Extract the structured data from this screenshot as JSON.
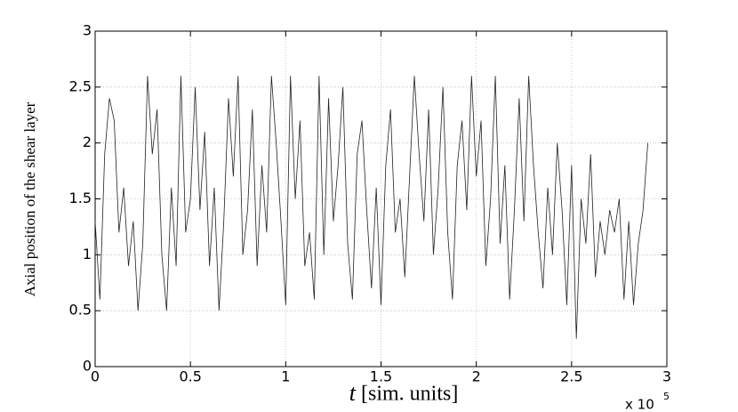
{
  "chart_data": {
    "type": "line",
    "y_label": "Axial position of the shear layer",
    "x_label_var": "t",
    "x_label_unit": "[sim. units]",
    "x_exponent_base": "x 10",
    "x_exponent": "5",
    "xlim": [
      0,
      3
    ],
    "xticks": [
      0,
      0.5,
      1,
      1.5,
      2,
      2.5,
      3
    ],
    "ylim": [
      0,
      3
    ],
    "yticks": [
      0,
      0.5,
      1,
      1.5,
      2,
      2.5,
      3
    ],
    "grid": true,
    "series": [
      {
        "color": "#222222",
        "x": [
          0,
          0.025,
          0.05,
          0.075,
          0.1,
          0.125,
          0.15,
          0.175,
          0.2,
          0.225,
          0.25,
          0.275,
          0.3,
          0.325,
          0.35,
          0.375,
          0.4,
          0.425,
          0.45,
          0.475,
          0.5,
          0.525,
          0.55,
          0.575,
          0.6,
          0.625,
          0.65,
          0.675,
          0.7,
          0.725,
          0.75,
          0.775,
          0.8,
          0.825,
          0.85,
          0.875,
          0.9,
          0.925,
          0.95,
          0.975,
          1,
          1.025,
          1.05,
          1.075,
          1.1,
          1.125,
          1.15,
          1.175,
          1.2,
          1.225,
          1.25,
          1.275,
          1.3,
          1.325,
          1.35,
          1.375,
          1.4,
          1.425,
          1.45,
          1.475,
          1.5,
          1.525,
          1.55,
          1.575,
          1.6,
          1.625,
          1.65,
          1.675,
          1.7,
          1.725,
          1.75,
          1.775,
          1.8,
          1.825,
          1.85,
          1.875,
          1.9,
          1.925,
          1.95,
          1.975,
          2,
          2.025,
          2.05,
          2.075,
          2.1,
          2.125,
          2.15,
          2.175,
          2.2,
          2.225,
          2.25,
          2.275,
          2.3,
          2.325,
          2.35,
          2.375,
          2.4,
          2.425,
          2.45,
          2.475,
          2.5,
          2.525,
          2.55,
          2.575,
          2.6,
          2.625,
          2.65,
          2.675,
          2.7,
          2.725,
          2.75,
          2.775,
          2.8,
          2.825,
          2.85,
          2.875,
          2.9
        ],
        "values": [
          1.3,
          0.6,
          1.9,
          2.4,
          2.2,
          1.2,
          1.6,
          0.9,
          1.3,
          0.5,
          1.1,
          2.6,
          1.9,
          2.3,
          1.0,
          0.5,
          1.6,
          0.9,
          2.6,
          1.2,
          1.5,
          2.5,
          1.4,
          2.1,
          0.9,
          1.6,
          0.5,
          1.3,
          2.4,
          1.7,
          2.6,
          1.0,
          1.4,
          2.3,
          0.9,
          1.8,
          1.2,
          2.6,
          2.0,
          1.3,
          0.55,
          2.6,
          1.5,
          2.2,
          0.9,
          1.2,
          0.6,
          2.6,
          1.0,
          2.4,
          1.3,
          1.8,
          2.5,
          1.1,
          0.6,
          1.9,
          2.2,
          1.4,
          0.7,
          1.6,
          0.55,
          1.8,
          2.3,
          1.2,
          1.5,
          0.8,
          1.7,
          2.6,
          1.9,
          1.3,
          2.3,
          1.0,
          1.6,
          2.5,
          1.2,
          0.6,
          1.8,
          2.2,
          1.4,
          2.6,
          1.7,
          2.2,
          0.9,
          1.5,
          2.6,
          1.1,
          1.8,
          0.6,
          1.4,
          2.4,
          1.3,
          2.6,
          1.8,
          1.2,
          0.7,
          1.6,
          1.0,
          2.0,
          1.4,
          0.55,
          1.8,
          0.25,
          1.5,
          1.1,
          1.9,
          0.8,
          1.3,
          1.0,
          1.4,
          1.2,
          1.5,
          0.6,
          1.3,
          0.55,
          1.1,
          1.4,
          2.0
        ]
      }
    ]
  }
}
